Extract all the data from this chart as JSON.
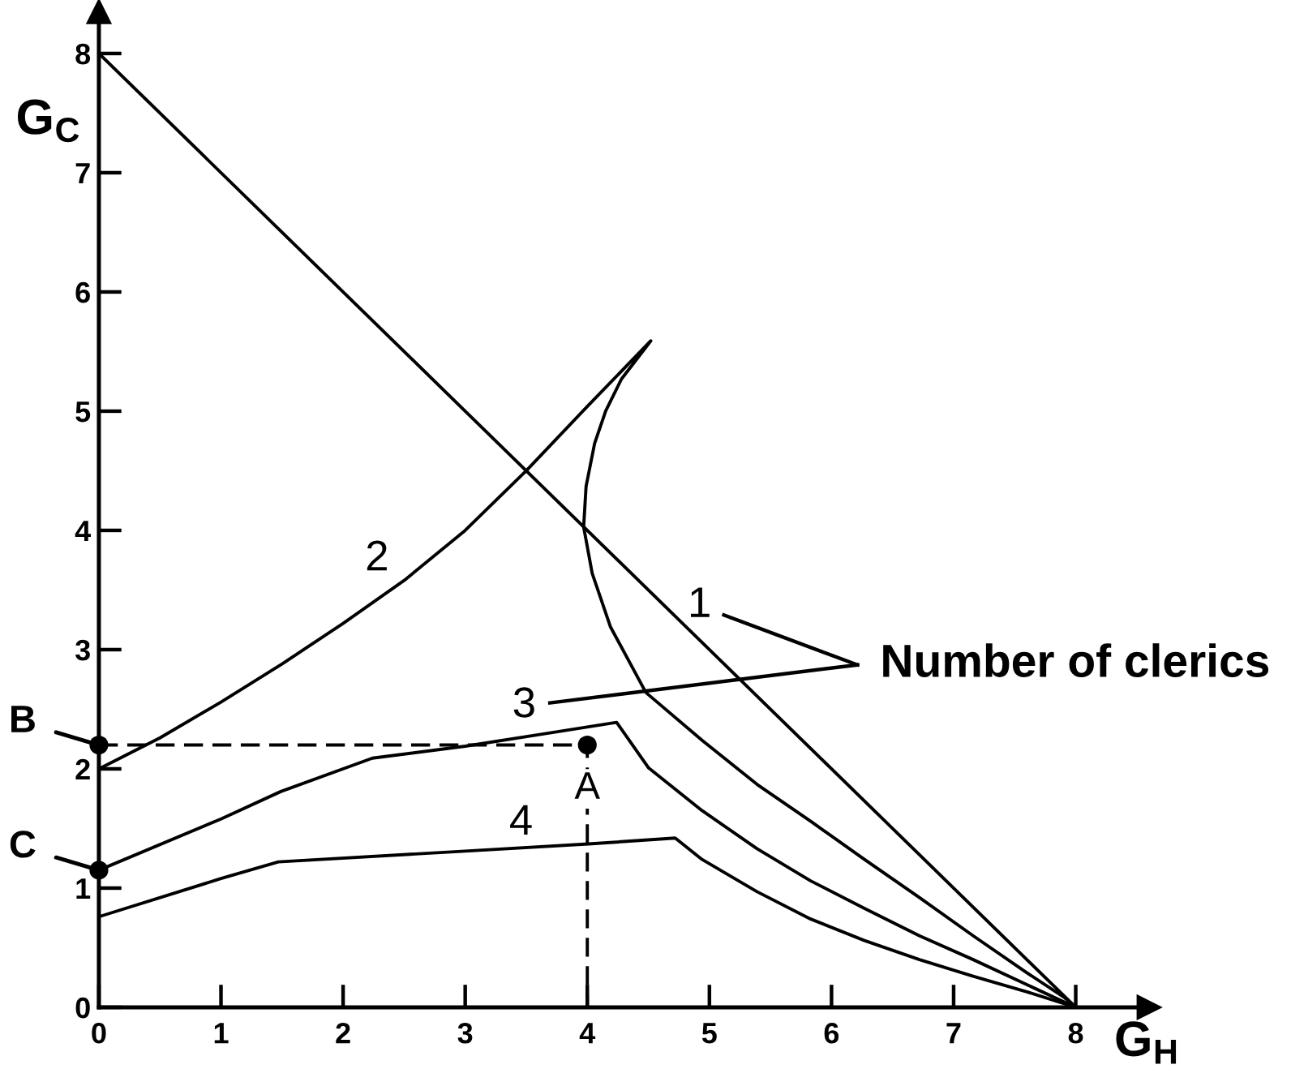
{
  "chart_data": {
    "type": "line",
    "xlabel": "G$_{H}$",
    "ylabel": "G$_{C}$",
    "xlim": [
      0,
      8.6
    ],
    "ylim": [
      0,
      8.35
    ],
    "xticks": [
      0,
      1,
      2,
      3,
      4,
      5,
      6,
      7,
      8
    ],
    "yticks": [
      0,
      1,
      2,
      3,
      4,
      5,
      6,
      7,
      8
    ],
    "series": [
      {
        "name": "1",
        "color": "#000000",
        "x": [
          0,
          8
        ],
        "values": [
          8,
          0
        ]
      },
      {
        "name": "2",
        "color": "#000000",
        "x": [
          0,
          0.5,
          1.0,
          1.5,
          2.0,
          2.5,
          3.0,
          3.5,
          4.0,
          4.52,
          4.28,
          4.15,
          4.06,
          3.99,
          3.97,
          4.04,
          4.19,
          4.48,
          4.94,
          5.39,
          5.83,
          6.27,
          6.72,
          7.16,
          7.6,
          7.91,
          8
        ],
        "values": [
          2.0,
          2.26,
          2.56,
          2.88,
          3.22,
          3.58,
          4.0,
          4.5,
          5.04,
          5.59,
          5.27,
          5.0,
          4.73,
          4.37,
          4.03,
          3.64,
          3.19,
          2.64,
          2.24,
          1.87,
          1.56,
          1.24,
          0.92,
          0.6,
          0.29,
          0.08,
          0
        ]
      },
      {
        "name": "3",
        "color": "#000000",
        "x": [
          0,
          1.0,
          1.49,
          2.24,
          3.0,
          3.62,
          4.24,
          4.5,
          4.94,
          5.39,
          5.83,
          6.27,
          6.72,
          7.16,
          7.6,
          8
        ],
        "values": [
          1.15,
          1.58,
          1.81,
          2.09,
          2.19,
          2.29,
          2.39,
          2.01,
          1.65,
          1.33,
          1.06,
          0.83,
          0.6,
          0.4,
          0.19,
          0
        ]
      },
      {
        "name": "4",
        "color": "#000000",
        "x": [
          0,
          1.0,
          1.47,
          3.0,
          4.01,
          4.72,
          4.94,
          5.39,
          5.83,
          6.27,
          6.72,
          7.16,
          7.6,
          8
        ],
        "values": [
          0.76,
          1.08,
          1.22,
          1.31,
          1.37,
          1.42,
          1.24,
          0.97,
          0.74,
          0.56,
          0.4,
          0.26,
          0.13,
          0
        ]
      },
      {
        "color": "#000000",
        "type": "line",
        "line_style": "dashed",
        "x": [
          0,
          4,
          4
        ],
        "values": [
          2.2,
          2.2,
          0
        ]
      },
      {
        "color": "#000000",
        "type": "scatter",
        "marker": "circle",
        "x": [
          4,
          0,
          0
        ],
        "values": [
          2.2,
          2.2,
          1.15
        ],
        "value_labels": [
          "A",
          "B",
          "C"
        ]
      }
    ],
    "annotations": [
      "Number of clerics"
    ]
  }
}
